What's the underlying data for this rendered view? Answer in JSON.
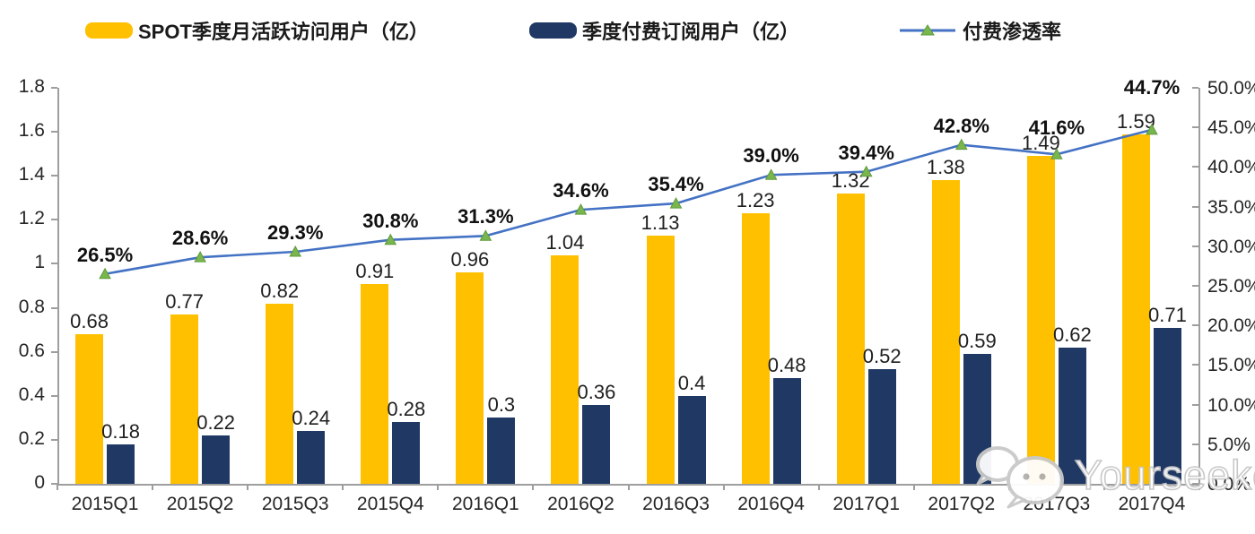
{
  "chart_data": {
    "type": "combo",
    "title": "",
    "categories": [
      "2015Q1",
      "2015Q2",
      "2015Q3",
      "2015Q4",
      "2016Q1",
      "2016Q2",
      "2016Q3",
      "2016Q4",
      "2017Q1",
      "2017Q2",
      "2017Q3",
      "2017Q4"
    ],
    "series": [
      {
        "name": "SPOT季度月活跃访问用户（亿）",
        "type": "bar",
        "axis": "left",
        "color": "#FFC000",
        "values": [
          0.68,
          0.77,
          0.82,
          0.91,
          0.96,
          1.04,
          1.13,
          1.23,
          1.32,
          1.38,
          1.49,
          1.59
        ],
        "labels": [
          "0.68",
          "0.77",
          "0.82",
          "0.91",
          "0.96",
          "1.04",
          "1.13",
          "1.23",
          "1.32",
          "1.38",
          "1.49",
          "1.59"
        ]
      },
      {
        "name": "季度付费订阅用户（亿）",
        "type": "bar",
        "axis": "left",
        "color": "#1F3864",
        "values": [
          0.18,
          0.22,
          0.24,
          0.28,
          0.3,
          0.36,
          0.4,
          0.48,
          0.52,
          0.59,
          0.62,
          0.71
        ],
        "labels": [
          "0.18",
          "0.22",
          "0.24",
          "0.28",
          "0.3",
          "0.36",
          "0.4",
          "0.48",
          "0.52",
          "0.59",
          "0.62",
          "0.71"
        ]
      },
      {
        "name": "付费渗透率",
        "type": "line",
        "axis": "right",
        "color": "#4472C4",
        "marker": "triangle",
        "marker_color": "#79B64E",
        "marker_edge_color": "#5F9A3C",
        "values": [
          26.5,
          28.6,
          29.3,
          30.8,
          31.3,
          34.6,
          35.4,
          39.0,
          39.4,
          42.8,
          41.6,
          44.7
        ],
        "labels": [
          "26.5%",
          "28.6%",
          "29.3%",
          "30.8%",
          "31.3%",
          "34.6%",
          "35.4%",
          "39.0%",
          "39.4%",
          "42.8%",
          "41.6%",
          "44.7%"
        ],
        "label_dy": [
          0,
          0,
          0,
          0,
          0,
          0,
          0,
          0,
          0,
          0,
          -8,
          -26
        ]
      }
    ],
    "left_axis": {
      "min": 0,
      "max": 1.8,
      "step": 0.2,
      "ticks": [
        "0",
        "0.2",
        "0.4",
        "0.6",
        "0.8",
        "1",
        "1.2",
        "1.4",
        "1.6",
        "1.8"
      ]
    },
    "right_axis": {
      "min": 0,
      "max": 50,
      "step": 5,
      "ticks": [
        "0.0%",
        "5.0%",
        "10.0%",
        "15.0%",
        "20.0%",
        "25.0%",
        "30.0%",
        "35.0%",
        "40.0%",
        "45.0%",
        "50.0%"
      ]
    },
    "grid": false,
    "legend_position": "top"
  },
  "watermark": {
    "text": "Yourseeker",
    "icon": "wechat-icon"
  }
}
